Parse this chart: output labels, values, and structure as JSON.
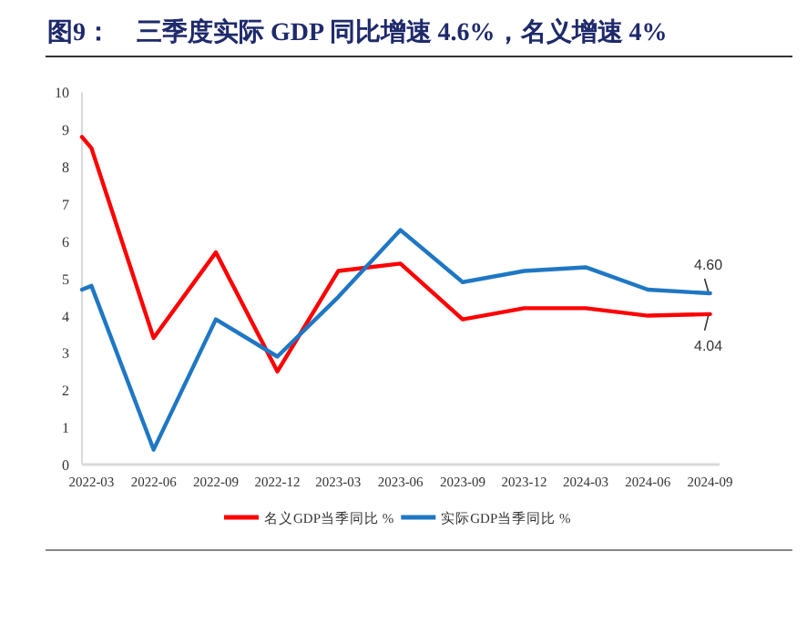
{
  "chart_data": {
    "type": "line",
    "title": "图9：　三季度实际 GDP 同比增速 4.6%，名义增速 4%",
    "x": [
      "2022-02-15",
      "2022-03",
      "2022-06",
      "2022-09",
      "2022-12",
      "2023-03",
      "2023-06",
      "2023-09",
      "2023-12",
      "2024-03",
      "2024-06",
      "2024-09"
    ],
    "series": [
      {
        "name": "名义GDP当季同比 %",
        "color": "#ff0000",
        "values": [
          8.8,
          8.5,
          3.4,
          5.7,
          2.5,
          5.2,
          5.4,
          3.9,
          4.2,
          4.2,
          4.0,
          4.04
        ]
      },
      {
        "name": "实际GDP当季同比 %",
        "color": "#1f77c4",
        "values": [
          4.7,
          4.8,
          0.4,
          3.9,
          2.9,
          4.5,
          6.3,
          4.9,
          5.2,
          5.3,
          4.7,
          4.6
        ]
      }
    ],
    "annotations": [
      {
        "text": "4.60",
        "x": "2024-09",
        "y": 4.6
      },
      {
        "text": "4.04",
        "x": "2024-09",
        "y": 4.04
      }
    ],
    "xlim": [
      "2022-02-15",
      "2024-09-15"
    ],
    "xticks": [
      "2022-03",
      "2022-06",
      "2022-09",
      "2022-12",
      "2023-03",
      "2023-06",
      "2023-09",
      "2023-12",
      "2024-03",
      "2024-06",
      "2024-09"
    ],
    "ylim": [
      0,
      10
    ],
    "yticks": [
      0,
      1,
      2,
      3,
      4,
      5,
      6,
      7,
      8,
      9,
      10
    ],
    "grid": false,
    "legend": "bottom",
    "marker": "none",
    "line_style": "solid"
  }
}
